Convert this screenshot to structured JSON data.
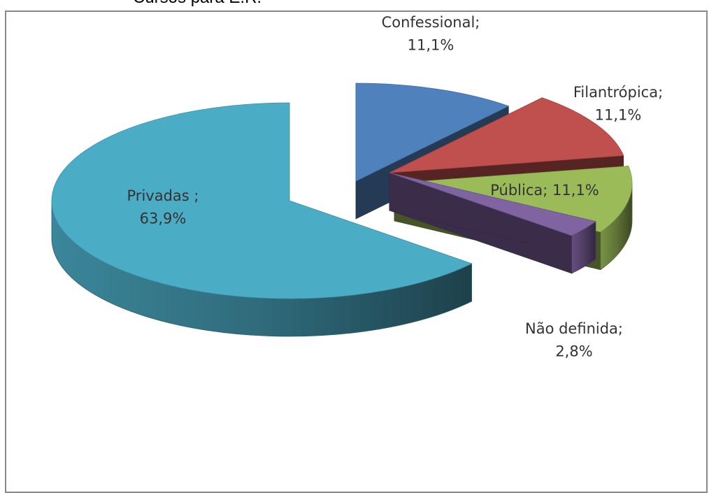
{
  "chart_data": {
    "type": "pie",
    "title": "Cursos para E.R.",
    "three_d": true,
    "exploded": true,
    "slices": [
      {
        "name": "Confessional",
        "value": 11.1,
        "label_lines": [
          "Confessional;",
          "11,1%"
        ],
        "color": "#4F81BD"
      },
      {
        "name": "Filantrópica",
        "value": 11.1,
        "label_lines": [
          "Filantrópica;",
          "11,1%"
        ],
        "color": "#C0504D"
      },
      {
        "name": "Pública",
        "value": 11.1,
        "label_lines": [
          "Pública; 11,1%"
        ],
        "color": "#9BBB59"
      },
      {
        "name": "Não definida",
        "value": 2.8,
        "label_lines": [
          "Não definida;",
          "2,8%"
        ],
        "color": "#8064A2"
      },
      {
        "name": "Privadas",
        "value": 63.9,
        "label_lines": [
          "Privadas ;",
          "63,9%"
        ],
        "color": "#4BACC6"
      }
    ]
  }
}
